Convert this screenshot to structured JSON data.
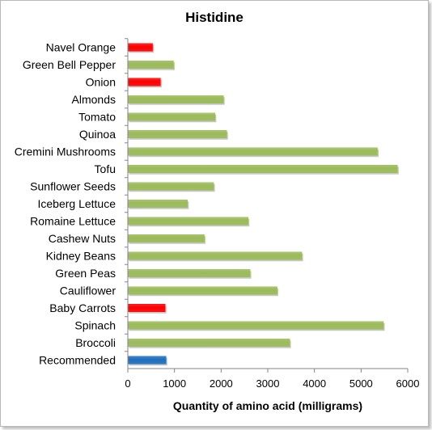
{
  "chart_data": {
    "type": "bar",
    "orientation": "horizontal",
    "title": "Histidine",
    "xlabel": "Quantity of amino acid (milligrams)",
    "ylabel": "",
    "xlim": [
      0,
      6000
    ],
    "xticks": [
      0,
      1000,
      2000,
      3000,
      4000,
      5000,
      6000
    ],
    "grid": false,
    "legend": "none",
    "categories": [
      "Navel Orange",
      "Green Bell Pepper",
      "Onion",
      "Almonds",
      "Tomato",
      "Quinoa",
      "Cremini Mushrooms",
      "Tofu",
      "Sunflower Seeds",
      "Iceberg Lettuce",
      "Romaine Lettuce",
      "Cashew Nuts",
      "Kidney Beans",
      "Green Peas",
      "Cauliflower",
      "Baby Carrots",
      "Spinach",
      "Broccoli",
      "Recommended"
    ],
    "values": [
      530,
      980,
      700,
      2050,
      1870,
      2120,
      5350,
      5780,
      1840,
      1280,
      2580,
      1640,
      3730,
      2620,
      3200,
      800,
      5480,
      3470,
      820
    ],
    "bar_colors": [
      "#ff0000",
      "#9bbb59",
      "#ff0000",
      "#9bbb59",
      "#9bbb59",
      "#9bbb59",
      "#9bbb59",
      "#9bbb59",
      "#9bbb59",
      "#9bbb59",
      "#9bbb59",
      "#9bbb59",
      "#9bbb59",
      "#9bbb59",
      "#9bbb59",
      "#ff0000",
      "#9bbb59",
      "#9bbb59",
      "#1f6fbf"
    ],
    "colors": {
      "above_recommended": "#9bbb59",
      "below_recommended": "#ff0000",
      "recommended": "#1f6fbf"
    }
  }
}
